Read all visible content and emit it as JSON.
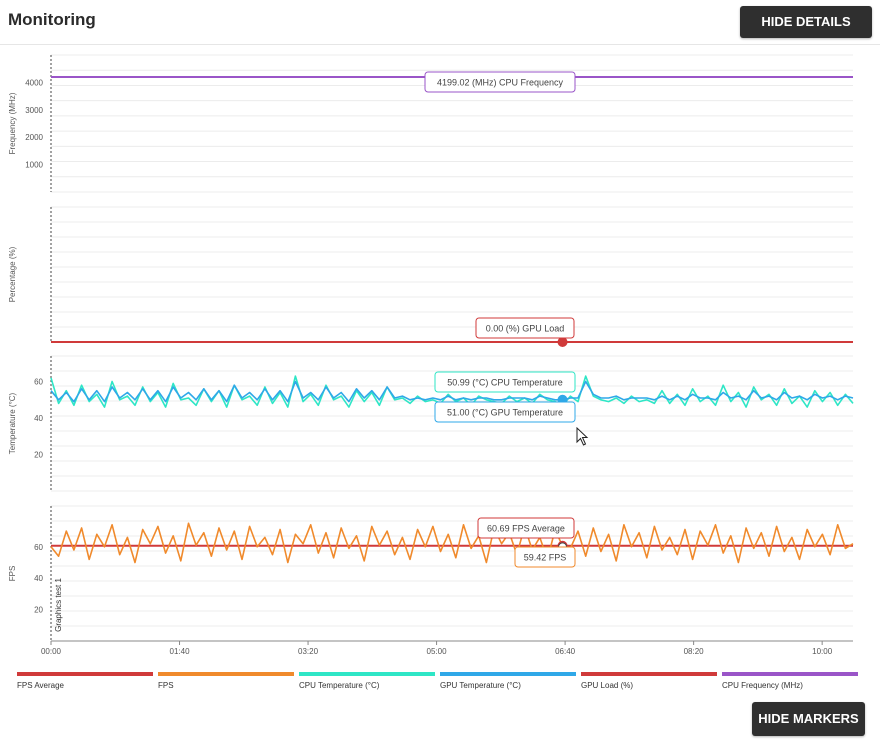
{
  "header": {
    "title": "Monitoring",
    "hide_details_label": "HIDE DETAILS"
  },
  "footer": {
    "hide_markers_label": "HIDE MARKERS"
  },
  "colors": {
    "fps_average": "#d03a3a",
    "fps": "#f08a2c",
    "cpu_temperature": "#2ee6c6",
    "gpu_temperature": "#2fa8e8",
    "gpu_load": "#d03a3a",
    "cpu_frequency": "#9a55c8"
  },
  "legend": [
    {
      "label": "FPS Average",
      "color": "#d03a3a"
    },
    {
      "label": "FPS",
      "color": "#f08a2c"
    },
    {
      "label": "CPU Temperature (°C)",
      "color": "#2ee6c6"
    },
    {
      "label": "GPU Temperature (°C)",
      "color": "#2fa8e8"
    },
    {
      "label": "GPU Load (%)",
      "color": "#d03a3a"
    },
    {
      "label": "CPU Frequency (MHz)",
      "color": "#9a55c8"
    }
  ],
  "chart_data": {
    "type": "line",
    "x_axis": {
      "unit": "seconds",
      "range": [
        0,
        624
      ],
      "ticks": [
        0,
        100,
        200,
        300,
        400,
        500,
        600
      ],
      "tick_labels": [
        "00:00",
        "01:40",
        "03:20",
        "05:00",
        "06:40",
        "08:20",
        "10:00"
      ]
    },
    "marker_time": 398,
    "vertical_annotation": "Graphics test 1",
    "panels": [
      {
        "ylabel": "Frequency (MHz)",
        "ylim": [
          0,
          5000
        ],
        "yticks": [
          1000,
          2000,
          3000,
          4000
        ],
        "series": [
          {
            "name": "CPU Frequency",
            "key": "cpu_frequency",
            "constant": 4199.02,
            "tooltip": "4199.02 (MHz) CPU Frequency"
          }
        ]
      },
      {
        "ylabel": "Percentage (%)",
        "ylim": [
          0,
          100
        ],
        "yticks": [],
        "series": [
          {
            "name": "GPU Load",
            "key": "gpu_load",
            "constant": 0,
            "tooltip": "0.00 (%) GPU Load"
          }
        ]
      },
      {
        "ylabel": "Temperature (°C)",
        "ylim": [
          0,
          74
        ],
        "yticks": [
          20,
          40,
          60
        ],
        "series": [
          {
            "name": "CPU Temperature",
            "key": "cpu_temperature",
            "tooltip": "50.99 (°C) CPU Temperature",
            "values": [
              62,
              48,
              55,
              47,
              58,
              49,
              53,
              46,
              60,
              50,
              52,
              47,
              57,
              49,
              54,
              46,
              59,
              50,
              51,
              47,
              56,
              49,
              55,
              46,
              58,
              50,
              52,
              47,
              57,
              48,
              54,
              46,
              63,
              49,
              53,
              47,
              58,
              50,
              52,
              46,
              55,
              49,
              54,
              47,
              57,
              50,
              51,
              48,
              52,
              49,
              50,
              48,
              53,
              49,
              51,
              47,
              52,
              50,
              49,
              48,
              52,
              49,
              51,
              48,
              53,
              50,
              49,
              47,
              52,
              49,
              63,
              52,
              50,
              49,
              51,
              48,
              52,
              49,
              50,
              48,
              55,
              48,
              53,
              47,
              56,
              49,
              52,
              47,
              58,
              49,
              54,
              46,
              57,
              50,
              53,
              47,
              56,
              48,
              52,
              46,
              55,
              49,
              54,
              47,
              53,
              48
            ]
          },
          {
            "name": "GPU Temperature",
            "key": "gpu_temperature",
            "tooltip": "51.00 (°C) GPU Temperature",
            "values": [
              55,
              50,
              54,
              49,
              56,
              50,
              55,
              49,
              57,
              51,
              54,
              50,
              56,
              50,
              55,
              49,
              57,
              51,
              54,
              50,
              56,
              50,
              55,
              49,
              58,
              51,
              54,
              50,
              56,
              50,
              55,
              49,
              60,
              51,
              54,
              50,
              57,
              51,
              54,
              49,
              56,
              51,
              55,
              50,
              57,
              51,
              52,
              50,
              51,
              50,
              51,
              50,
              52,
              50,
              51,
              50,
              51,
              51,
              50,
              50,
              51,
              51,
              51,
              50,
              52,
              51,
              50,
              50,
              51,
              51,
              60,
              53,
              51,
              51,
              52,
              50,
              51,
              51,
              51,
              50,
              52,
              50,
              52,
              50,
              53,
              51,
              51,
              50,
              54,
              51,
              52,
              50,
              55,
              51,
              52,
              50,
              54,
              51,
              52,
              50,
              53,
              51,
              52,
              50,
              52,
              51
            ]
          }
        ]
      },
      {
        "ylabel": "FPS",
        "ylim": [
          0,
          86
        ],
        "yticks": [
          20,
          40,
          60
        ],
        "series": [
          {
            "name": "FPS Average",
            "key": "fps_average",
            "constant": 60.69,
            "tooltip": "60.69 FPS Average"
          },
          {
            "name": "FPS",
            "key": "fps",
            "tooltip": "59.42 FPS",
            "values": [
              60,
              54,
              70,
              58,
              72,
              52,
              68,
              60,
              74,
              55,
              66,
              50,
              71,
              62,
              73,
              56,
              67,
              51,
              75,
              61,
              69,
              54,
              72,
              58,
              70,
              52,
              73,
              60,
              66,
              55,
              71,
              50,
              68,
              62,
              74,
              56,
              69,
              53,
              72,
              59,
              67,
              51,
              73,
              61,
              70,
              55,
              66,
              52,
              71,
              60,
              73,
              57,
              68,
              53,
              74,
              59,
              67,
              50,
              72,
              62,
              69,
              55,
              73,
              58,
              66,
              52,
              71,
              60,
              59,
              70,
              54,
              72,
              57,
              68,
              51,
              74,
              60,
              69,
              53,
              73,
              58,
              66,
              55,
              71,
              52,
              70,
              61,
              74,
              56,
              67,
              50,
              72,
              59,
              69,
              54,
              73,
              57,
              66,
              52,
              71,
              60,
              68,
              55,
              74,
              59,
              62
            ]
          }
        ]
      }
    ]
  }
}
